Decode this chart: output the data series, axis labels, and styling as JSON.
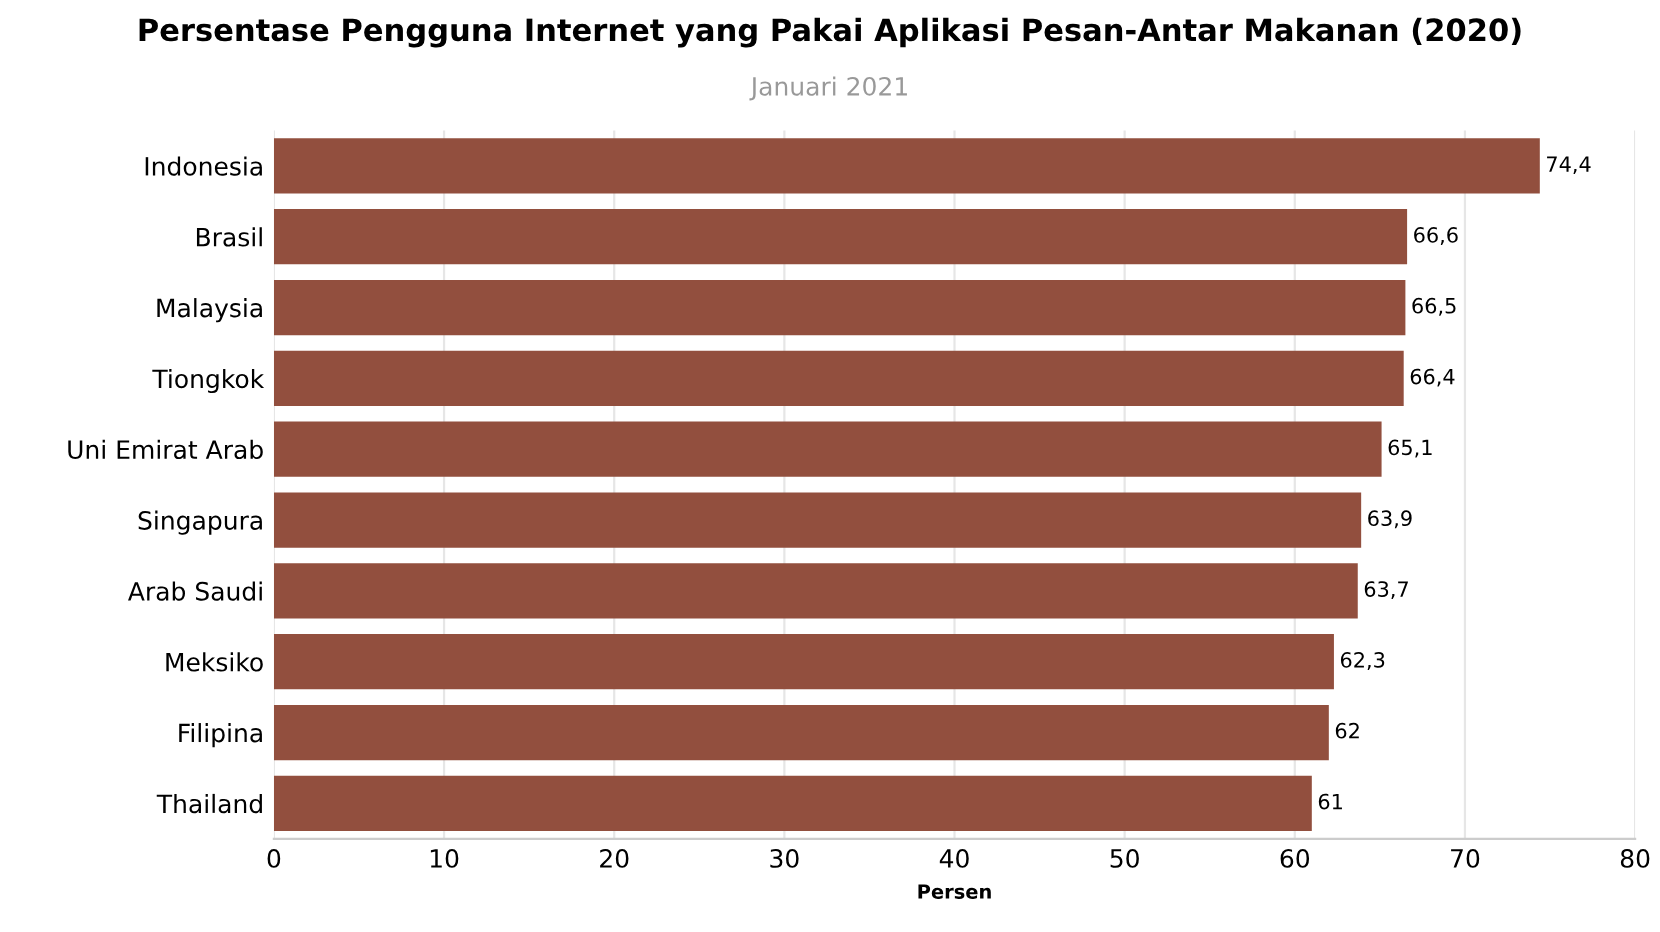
{
  "chart_data": {
    "type": "bar",
    "orientation": "horizontal",
    "title": "Persentase Pengguna Internet yang Pakai Aplikasi Pesan-Antar Makanan (2020)",
    "subtitle": "Januari 2021",
    "xlabel": "Persen",
    "categories": [
      "Indonesia",
      "Brasil",
      "Malaysia",
      "Tiongkok",
      "Uni Emirat Arab",
      "Singapura",
      "Arab Saudi",
      "Meksiko",
      "Filipina",
      "Thailand"
    ],
    "values": [
      74.4,
      66.6,
      66.5,
      66.4,
      65.1,
      63.9,
      63.7,
      62.3,
      62,
      61
    ],
    "value_labels": [
      "74,4",
      "66,6",
      "66,5",
      "66,4",
      "65,1",
      "63,9",
      "63,7",
      "62,3",
      "62",
      "61"
    ],
    "color": "#924f3e",
    "xlim": [
      0,
      80
    ],
    "xticks": [
      0,
      10,
      20,
      30,
      40,
      50,
      60,
      70,
      80
    ],
    "grid": "x"
  }
}
